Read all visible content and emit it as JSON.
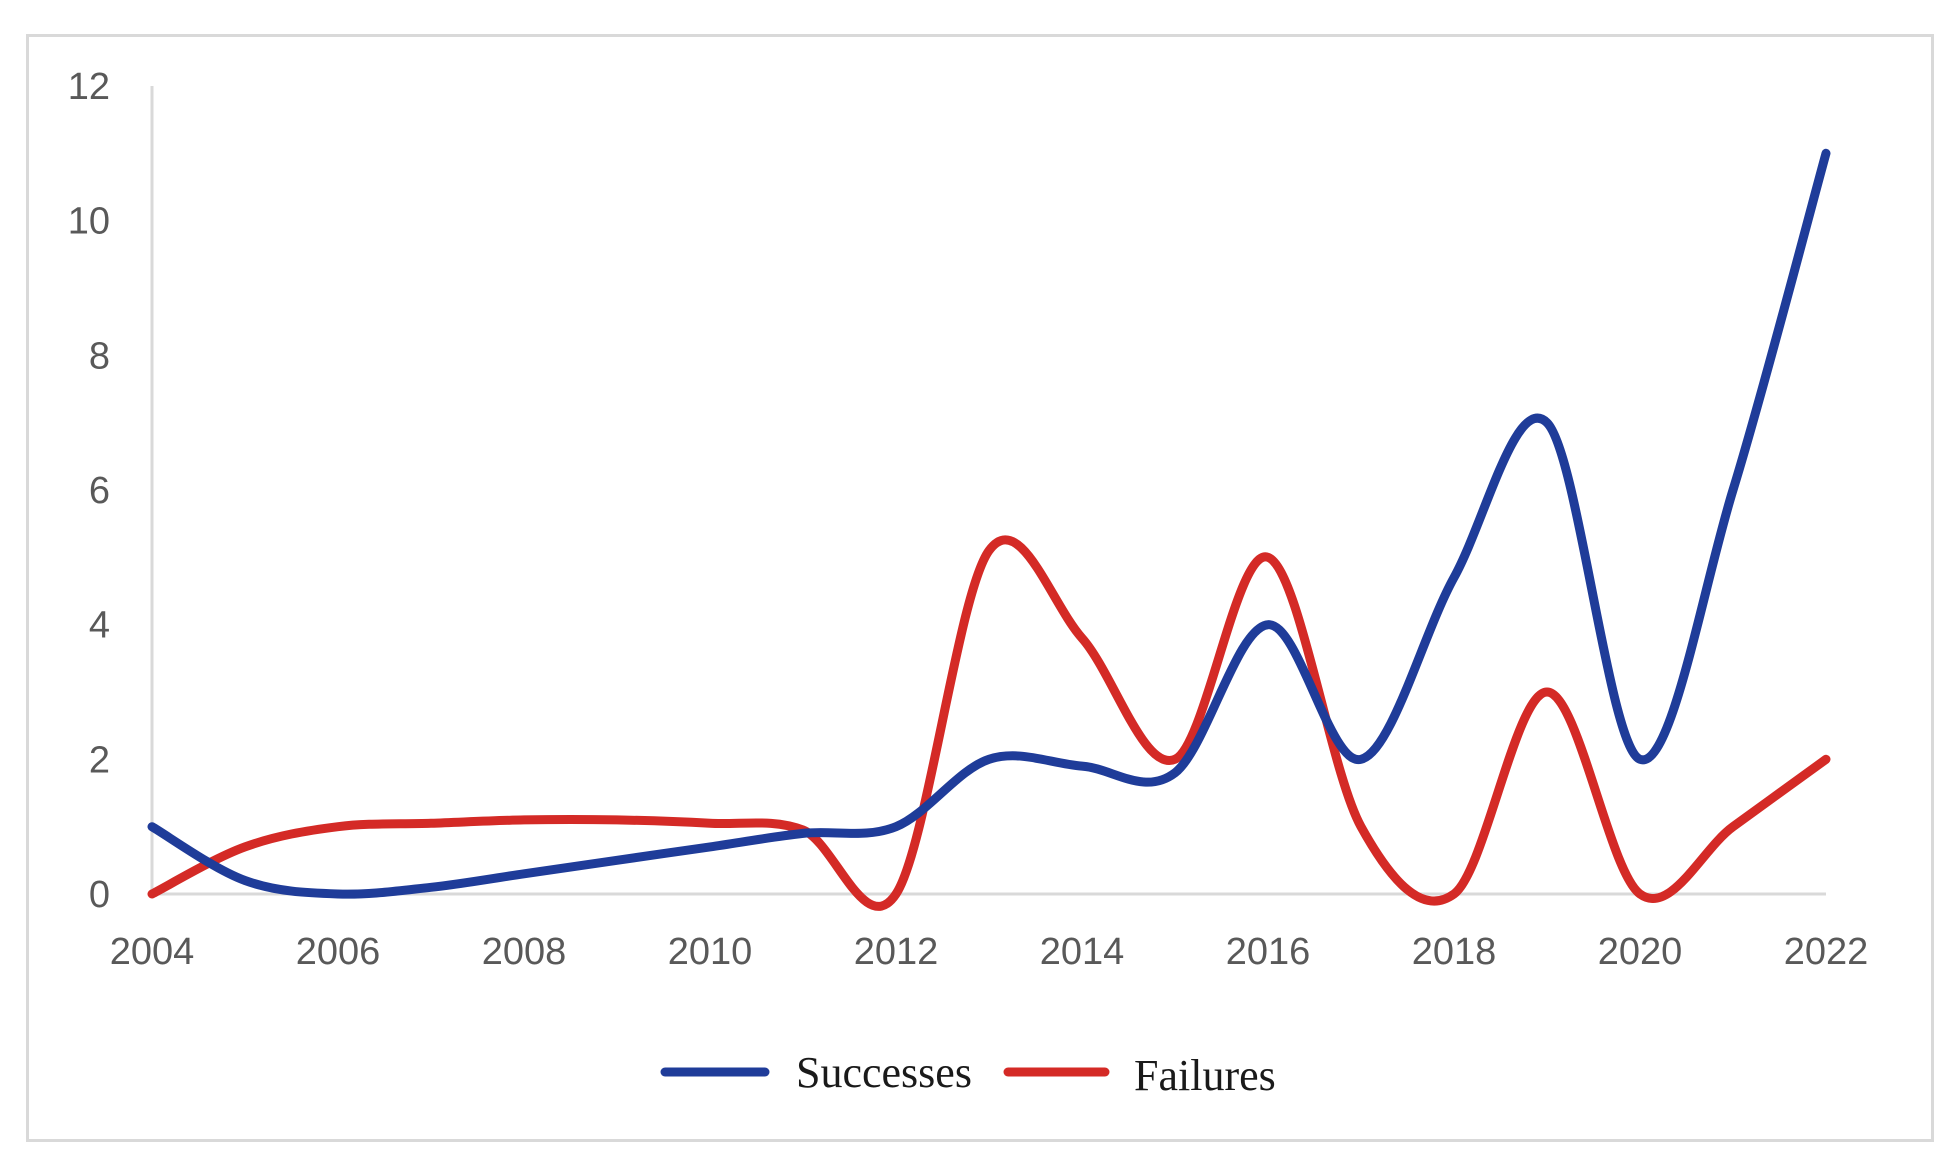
{
  "chart_data": {
    "type": "line",
    "title": "",
    "xlabel": "",
    "ylabel": "",
    "xlim": [
      2004,
      2022
    ],
    "ylim": [
      0,
      12
    ],
    "x_ticks": [
      "2004",
      "2006",
      "2008",
      "2010",
      "2012",
      "2014",
      "2016",
      "2018",
      "2020",
      "2022"
    ],
    "y_ticks": [
      "0",
      "2",
      "4",
      "6",
      "8",
      "10",
      "12"
    ],
    "grid": false,
    "legend_position": "bottom",
    "x": [
      2004,
      2005,
      2006,
      2007,
      2008,
      2009,
      2010,
      2011,
      2012,
      2013,
      2014,
      2015,
      2016,
      2017,
      2018,
      2019,
      2020,
      2021,
      2022
    ],
    "series": [
      {
        "name": "Successes",
        "color": "#1f3c99",
        "values": [
          1,
          0.2,
          0,
          0.1,
          0.3,
          0.5,
          0.7,
          0.9,
          1,
          2,
          1.9,
          1.8,
          4,
          2,
          4.7,
          7,
          2,
          6,
          11
        ]
      },
      {
        "name": "Failures",
        "color": "#d42a26",
        "values": [
          0,
          0.7,
          1,
          1.05,
          1.1,
          1.1,
          1.05,
          0.95,
          0,
          5.1,
          3.8,
          2,
          5,
          1,
          0,
          3,
          0,
          1,
          2
        ]
      }
    ]
  }
}
